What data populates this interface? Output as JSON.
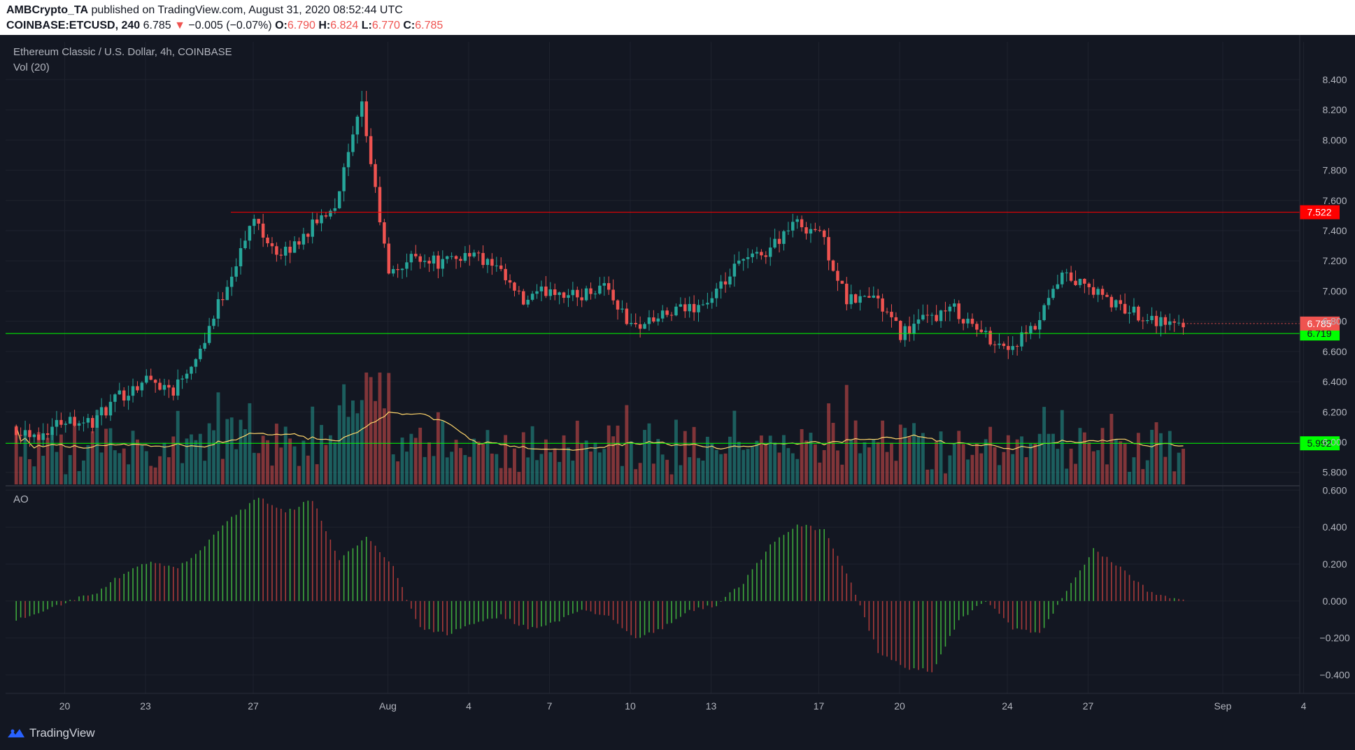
{
  "header": {
    "publisher": "AMBCrypto_TA",
    "published_text": " published on TradingView.com, August 31, 2020 08:52:44 UTC",
    "symbol": "COINBASE:ETCUSD, 240",
    "last": "6.785",
    "change_arrow": "▼",
    "change": "−0.005 (−0.07%)",
    "o_label": "O:",
    "o_value": "6.790",
    "h_label": "H:",
    "h_value": "6.824",
    "l_label": "L:",
    "l_value": "6.770",
    "c_label": "C:",
    "c_value": "6.785"
  },
  "legend": {
    "main": "Ethereum Classic / U.S. Dollar, 4h, COINBASE",
    "volume": "Vol (20)",
    "ao": "AO"
  },
  "footer": {
    "brand": "TradingView"
  },
  "colors": {
    "background": "#131722",
    "up": "#26a69a",
    "down": "#ef5350",
    "resistance": "#ff0000",
    "support": "#00ff00",
    "vol_ma": "#ffd66b",
    "ao_up": "#3ea83c",
    "ao_down": "#a63a3a"
  },
  "chart_data": [
    {
      "type": "candlestick",
      "name": "Ethereum Classic / U.S. Dollar, 4h, COINBASE",
      "x_ticks": [
        "20",
        "23",
        "27",
        "Aug",
        "4",
        "7",
        "10",
        "13",
        "17",
        "20",
        "24",
        "27",
        "Sep",
        "4"
      ],
      "y_ticks": [
        "5.800",
        "6.000",
        "6.200",
        "6.400",
        "6.600",
        "6.800",
        "7.000",
        "7.200",
        "7.400",
        "7.600",
        "7.800",
        "8.000",
        "8.200",
        "8.400"
      ],
      "ylim": [
        5.72,
        8.52
      ],
      "price_path": [
        [
          "Jul 19",
          6.1
        ],
        [
          "Jul 20",
          6.05
        ],
        [
          "Jul 21",
          6.16
        ],
        [
          "Jul 22",
          6.13
        ],
        [
          "Jul 23",
          6.3
        ],
        [
          "Jul 24",
          6.42
        ],
        [
          "Jul 25",
          6.35
        ],
        [
          "Jul 26",
          6.62
        ],
        [
          "Jul 27",
          7.05
        ],
        [
          "Jul 28",
          7.48
        ],
        [
          "Jul 29",
          7.22
        ],
        [
          "Jul 30",
          7.4
        ],
        [
          "Jul 31",
          7.58
        ],
        [
          "Aug 1",
          8.22
        ],
        [
          "Aug 2",
          7.1
        ],
        [
          "Aug 3",
          7.24
        ],
        [
          "Aug 4",
          7.18
        ],
        [
          "Aug 5",
          7.26
        ],
        [
          "Aug 6",
          7.14
        ],
        [
          "Aug 7",
          6.92
        ],
        [
          "Aug 8",
          7.02
        ],
        [
          "Aug 9",
          6.96
        ],
        [
          "Aug 10",
          7.05
        ],
        [
          "Aug 11",
          6.76
        ],
        [
          "Aug 12",
          6.82
        ],
        [
          "Aug 13",
          6.88
        ],
        [
          "Aug 14",
          6.94
        ],
        [
          "Aug 15",
          7.18
        ],
        [
          "Aug 16",
          7.26
        ],
        [
          "Aug 17",
          7.45
        ],
        [
          "Aug 18",
          7.4
        ],
        [
          "Aug 19",
          6.93
        ],
        [
          "Aug 20",
          6.97
        ],
        [
          "Aug 21",
          6.72
        ],
        [
          "Aug 22",
          6.82
        ],
        [
          "Aug 23",
          6.88
        ],
        [
          "Aug 24",
          6.72
        ],
        [
          "Aug 25",
          6.62
        ],
        [
          "Aug 26",
          6.75
        ],
        [
          "Aug 27",
          7.1
        ],
        [
          "Aug 28",
          7.02
        ],
        [
          "Aug 29",
          6.9
        ],
        [
          "Aug 30",
          6.84
        ],
        [
          "Aug 31",
          6.785
        ]
      ],
      "horizontal_lines": [
        {
          "value": 7.522,
          "label": "7.522",
          "color": "#ff0000"
        },
        {
          "value": 6.719,
          "label": "6.719",
          "color": "#00ff00"
        },
        {
          "value": 5.992,
          "label": "5.992",
          "color": "#00ff00"
        }
      ],
      "last_price": {
        "value": 6.785,
        "label": "6.785"
      }
    },
    {
      "type": "bar",
      "name": "Vol (20)",
      "series": [
        {
          "name": "Vol (20)",
          "note": "volume histogram with moving average, no scale printed"
        }
      ]
    },
    {
      "type": "bar",
      "name": "AO",
      "y_ticks": [
        "−0.400",
        "−0.200",
        "0.000",
        "0.200",
        "0.400",
        "0.600"
      ],
      "ylim": [
        -0.5,
        0.62
      ],
      "ao_path": [
        [
          "Jul 19",
          -0.1
        ],
        [
          "Jul 21",
          0.0
        ],
        [
          "Jul 22",
          0.05
        ],
        [
          "Jul 23",
          0.15
        ],
        [
          "Jul 24",
          0.22
        ],
        [
          "Jul 25",
          0.18
        ],
        [
          "Jul 26",
          0.3
        ],
        [
          "Jul 27",
          0.45
        ],
        [
          "Jul 28",
          0.56
        ],
        [
          "Jul 29",
          0.48
        ],
        [
          "Jul 30",
          0.55
        ],
        [
          "Jul 31",
          0.22
        ],
        [
          "Aug 1",
          0.35
        ],
        [
          "Aug 2",
          0.18
        ],
        [
          "Aug 3",
          -0.15
        ],
        [
          "Aug 4",
          -0.18
        ],
        [
          "Aug 5",
          -0.12
        ],
        [
          "Aug 6",
          -0.08
        ],
        [
          "Aug 7",
          -0.15
        ],
        [
          "Aug 8",
          -0.12
        ],
        [
          "Aug 9",
          -0.05
        ],
        [
          "Aug 10",
          -0.08
        ],
        [
          "Aug 11",
          -0.2
        ],
        [
          "Aug 12",
          -0.15
        ],
        [
          "Aug 13",
          -0.05
        ],
        [
          "Aug 14",
          -0.02
        ],
        [
          "Aug 15",
          0.1
        ],
        [
          "Aug 16",
          0.3
        ],
        [
          "Aug 17",
          0.42
        ],
        [
          "Aug 18",
          0.38
        ],
        [
          "Aug 19",
          0.1
        ],
        [
          "Aug 20",
          -0.28
        ],
        [
          "Aug 21",
          -0.36
        ],
        [
          "Aug 22",
          -0.38
        ],
        [
          "Aug 23",
          -0.1
        ],
        [
          "Aug 24",
          0.0
        ],
        [
          "Aug 25",
          -0.15
        ],
        [
          "Aug 26",
          -0.18
        ],
        [
          "Aug 27",
          0.05
        ],
        [
          "Aug 28",
          0.28
        ],
        [
          "Aug 29",
          0.18
        ],
        [
          "Aug 30",
          0.06
        ],
        [
          "Aug 31",
          0.01
        ]
      ]
    }
  ]
}
